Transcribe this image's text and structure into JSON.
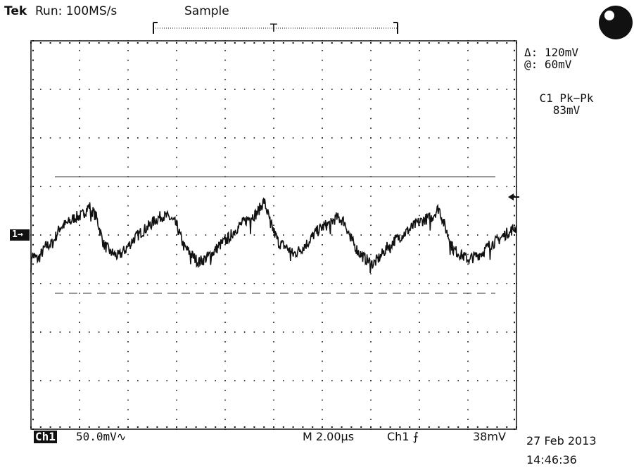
{
  "header": {
    "brand": "Tek",
    "run_status": "Run: 100MS/s",
    "acq_mode": "Sample",
    "trigger_pos_marker": "T"
  },
  "readouts": {
    "delta": "Δ: 120mV",
    "at": "@: 60mV",
    "measurement_label": "C1 Pk−Pk",
    "measurement_value": "83mV"
  },
  "channel_marker": "1→",
  "footer": {
    "channel": "Ch1",
    "volts_per_div": "50.0mV∿",
    "timebase": "M 2.00µs",
    "trigger_source": "Ch1 ⨍",
    "trigger_level": "38mV",
    "date": "27 Feb 2013",
    "time": "14:46:36"
  },
  "chart_data": {
    "type": "line",
    "grid": true,
    "divisions": {
      "x": 10,
      "y": 8
    },
    "xlim": [
      0,
      20
    ],
    "ylim": [
      -200,
      200
    ],
    "x_unit": "µs",
    "y_unit": "mV",
    "cursors": {
      "solid_mV": 60,
      "dashed_mV": -60
    },
    "series": [
      {
        "x": [
          0,
          0.3,
          0.6,
          0.9,
          1.2,
          1.5,
          1.8,
          2.1,
          2.4,
          2.7,
          3.0,
          3.3,
          3.6,
          3.9,
          4.2,
          4.5,
          4.8,
          5.1,
          5.4,
          5.7,
          6.0,
          6.3,
          6.6,
          6.9,
          7.2,
          7.5,
          7.8,
          8.1,
          8.4,
          8.7,
          9.0,
          9.3,
          9.6,
          9.9,
          10.2,
          10.5,
          10.8,
          11.1,
          11.4,
          11.7,
          12.0,
          12.3,
          12.6,
          12.9,
          13.2,
          13.5,
          13.8,
          14.1,
          14.4,
          14.7,
          15.0,
          15.3,
          15.6,
          15.9,
          16.2,
          16.5,
          16.8,
          17.1,
          17.4,
          17.7,
          18.0,
          18.3,
          18.6,
          18.9,
          19.2,
          19.5,
          19.8,
          20
        ],
        "y": [
          -20,
          -25,
          -12,
          -8,
          8,
          12,
          18,
          20,
          30,
          18,
          -10,
          -18,
          -22,
          -15,
          -5,
          2,
          8,
          15,
          20,
          18,
          10,
          -12,
          -20,
          -28,
          -24,
          -18,
          -10,
          -4,
          5,
          12,
          18,
          22,
          35,
          10,
          -8,
          -12,
          -20,
          -15,
          -8,
          2,
          8,
          12,
          18,
          14,
          -5,
          -18,
          -25,
          -30,
          -22,
          -12,
          -5,
          0,
          6,
          12,
          16,
          18,
          28,
          5,
          -15,
          -20,
          -25,
          -22,
          -18,
          -10,
          -6,
          0,
          5,
          8
        ]
      }
    ]
  }
}
